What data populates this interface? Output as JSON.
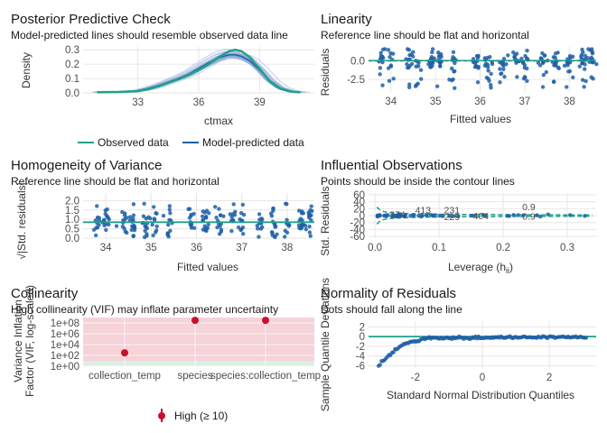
{
  "colors": {
    "observed": "#1FA187",
    "predicted": "#1F5FA8",
    "ribbon": "#8FA9D9",
    "points": "#1F5FA8",
    "refline": "#1FA187",
    "high_vif": "#C8102E",
    "high_band": "#F5D3D8",
    "low_band": "#DDEFE6",
    "grid": "#E6E6E6"
  },
  "chart_data": [
    {
      "id": "ppc",
      "type": "line",
      "title": "Posterior Predictive Check",
      "subtitle": "Model-predicted lines should resemble observed data line",
      "xlabel": "ctmax",
      "ylabel": "Density",
      "xlim": [
        30.3,
        41.7
      ],
      "ylim": [
        0,
        0.32
      ],
      "xticks": [
        33,
        36,
        39
      ],
      "yticks": [
        0.0,
        0.1,
        0.2,
        0.3
      ],
      "series": [
        {
          "name": "Observed data",
          "x": [
            31.0,
            32.0,
            33.0,
            33.5,
            34.0,
            34.5,
            35.0,
            35.5,
            36.0,
            36.5,
            37.0,
            37.5,
            37.8,
            38.1,
            38.5,
            39.0,
            39.5,
            40.0,
            40.5,
            41.0
          ],
          "y": [
            0.005,
            0.006,
            0.012,
            0.025,
            0.045,
            0.07,
            0.095,
            0.125,
            0.16,
            0.2,
            0.25,
            0.29,
            0.3,
            0.29,
            0.25,
            0.17,
            0.08,
            0.03,
            0.01,
            0.004
          ]
        },
        {
          "name": "Model-predicted data",
          "x": [
            31.0,
            32.0,
            33.0,
            33.5,
            34.0,
            34.5,
            35.0,
            35.5,
            36.0,
            36.5,
            37.0,
            37.5,
            37.8,
            38.1,
            38.5,
            39.0,
            39.5,
            40.0,
            40.5,
            41.0
          ],
          "y": [
            0.005,
            0.007,
            0.015,
            0.03,
            0.05,
            0.075,
            0.1,
            0.13,
            0.17,
            0.21,
            0.245,
            0.265,
            0.265,
            0.255,
            0.225,
            0.16,
            0.085,
            0.035,
            0.012,
            0.004
          ]
        }
      ],
      "legend": {
        "position": "bottom",
        "entries": [
          "Observed data",
          "Model-predicted data"
        ]
      }
    },
    {
      "id": "linearity",
      "type": "scatter",
      "title": "Linearity",
      "subtitle": "Reference line should be flat and horizontal",
      "xlabel": "Fitted values",
      "ylabel": "Residuals",
      "xlim": [
        33.5,
        38.6
      ],
      "ylim": [
        -4.2,
        1.9
      ],
      "xticks": [
        34,
        35,
        36,
        37,
        38
      ],
      "yticks": [
        -2.5,
        0.0
      ],
      "reference_line": 0
    },
    {
      "id": "homogeneity",
      "type": "scatter",
      "title": "Homogeneity of Variance",
      "subtitle": "Reference line should be flat and horizontal",
      "xlabel": "Fitted values",
      "ylabel": "√|Std. residuals|",
      "xlim": [
        33.5,
        38.6
      ],
      "ylim": [
        0,
        2.4
      ],
      "xticks": [
        34,
        35,
        36,
        37,
        38
      ],
      "yticks": [
        0.0,
        0.5,
        1.0,
        1.5,
        2.0
      ],
      "smooth_level": 0.85
    },
    {
      "id": "influential",
      "type": "scatter",
      "title": "Influential Observations",
      "subtitle": "Points should be inside the contour lines",
      "xlabel": "Leverage (h",
      "xlabel_sub": "ii",
      "xlabel_end": ")",
      "ylabel": "Std. Residuals",
      "xlim": [
        -0.01,
        0.345
      ],
      "ylim": [
        -65,
        65
      ],
      "xticks": [
        0.0,
        0.1,
        0.2,
        0.3
      ],
      "yticks": [
        -60,
        -40,
        -20,
        0,
        20,
        40,
        60
      ],
      "contour_label": "0.9",
      "labels": [
        {
          "text": "413",
          "x": 0.075,
          "y": 7
        },
        {
          "text": "231",
          "x": 0.12,
          "y": 6
        },
        {
          "text": "374",
          "x": 0.035,
          "y": -6
        },
        {
          "text": "229",
          "x": 0.12,
          "y": -13
        },
        {
          "text": "404",
          "x": 0.165,
          "y": -11
        }
      ]
    },
    {
      "id": "collinearity",
      "type": "scatter",
      "title": "Collinearity",
      "subtitle": "High collinearity (VIF) may inflate parameter uncertainty",
      "xlabel": "",
      "ylabel": "Variance Inflation\nFactor (VIF, log-scaled)",
      "log_scale": true,
      "categories": [
        "collection_temp",
        "species",
        "species:collection_temp"
      ],
      "values": [
        300,
        300000000,
        300000000
      ],
      "ylim": [
        1,
        1000000000
      ],
      "yticks": [
        "1e+00",
        "1e+02",
        "1e+04",
        "1e+06",
        "1e+08"
      ],
      "legend": {
        "position": "bottom",
        "entries": [
          "High (≥ 10)"
        ]
      }
    },
    {
      "id": "normality",
      "type": "scatter",
      "title": "Normality of Residuals",
      "subtitle": "Dots should fall along the line",
      "xlabel": "Standard Normal Distribution Quantiles",
      "ylabel": "Sample Quantile Deviations",
      "xlim": [
        -3.4,
        3.4
      ],
      "ylim": [
        -6.5,
        3.2
      ],
      "xticks": [
        -2,
        0,
        2
      ],
      "yticks": [
        -6,
        -4,
        -2,
        0,
        2
      ]
    }
  ]
}
